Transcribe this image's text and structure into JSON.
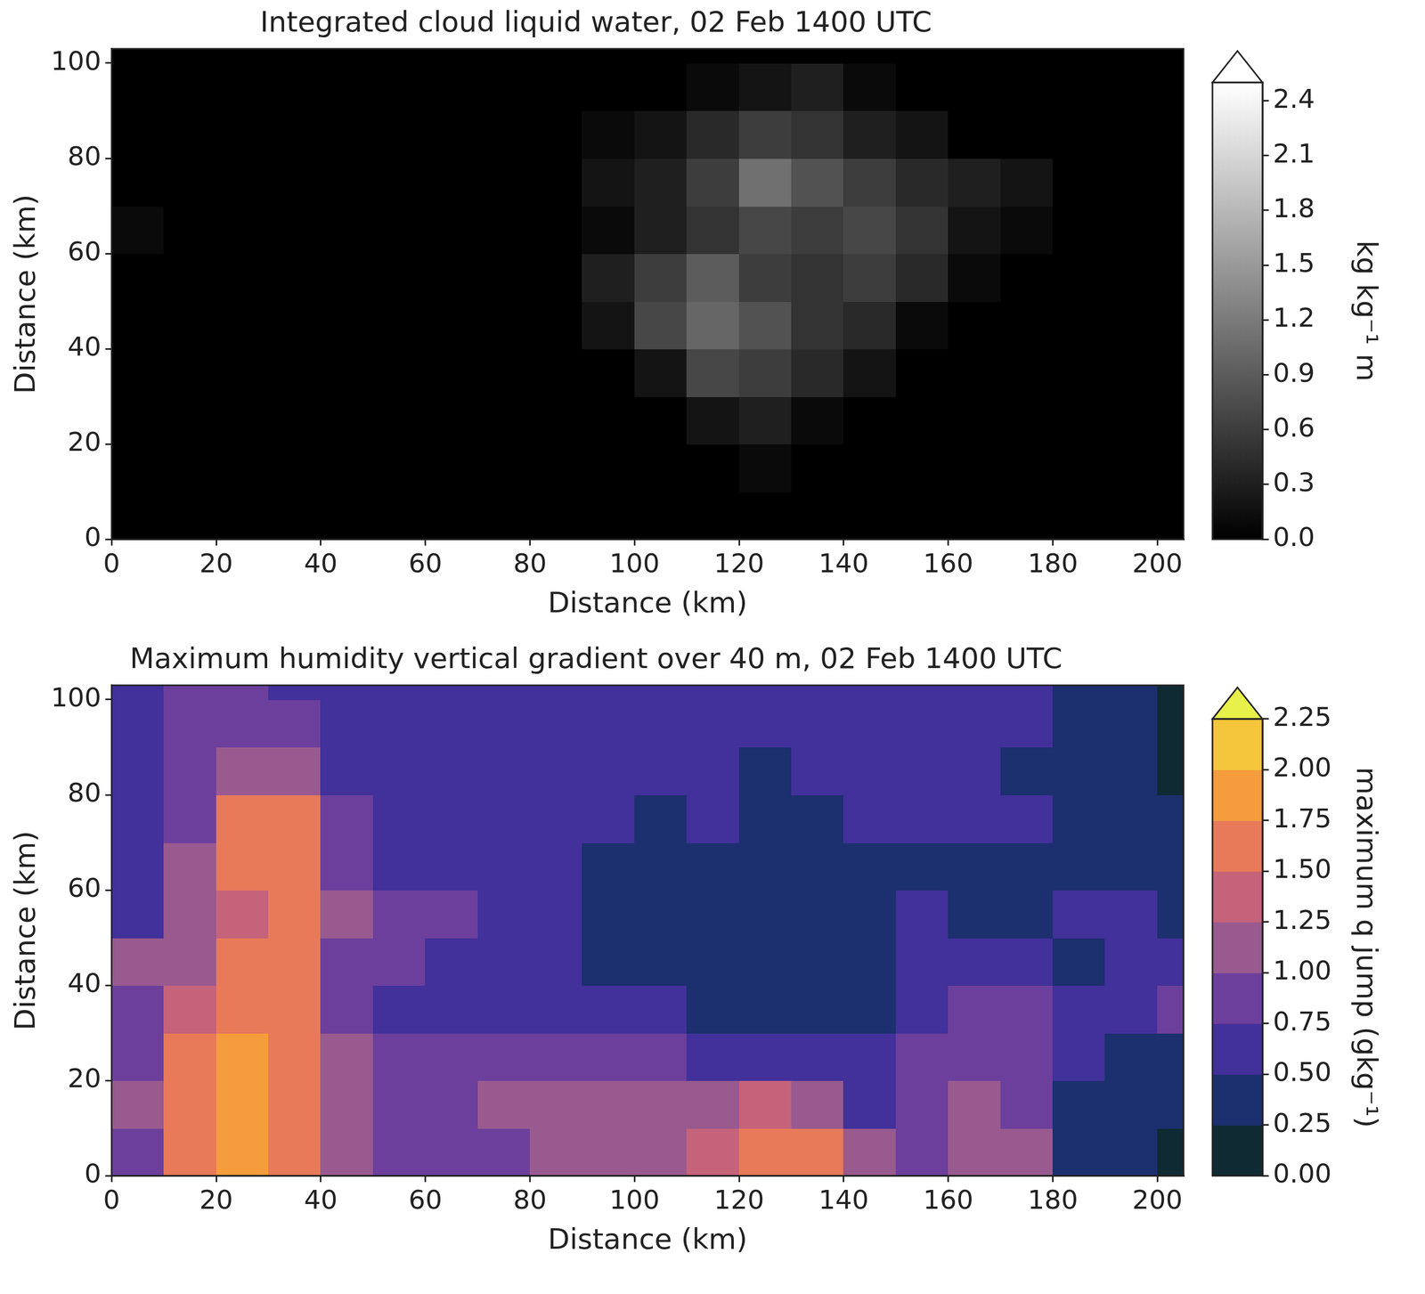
{
  "chart_data": [
    {
      "type": "heatmap",
      "title": "Integrated cloud liquid water, 02 Feb 1400 UTC",
      "x_label": "Distance (km)",
      "y_label": "Distance (km)",
      "xlim": [
        0,
        205
      ],
      "ylim": [
        0,
        103
      ],
      "xticks": [
        0,
        20,
        40,
        60,
        80,
        100,
        120,
        140,
        160,
        180,
        200
      ],
      "yticks": [
        0,
        20,
        40,
        60,
        80,
        100
      ],
      "x_edges": [
        0,
        10,
        20,
        30,
        40,
        50,
        60,
        70,
        80,
        90,
        100,
        110,
        120,
        130,
        140,
        150,
        160,
        170,
        180,
        190,
        200,
        205
      ],
      "y_edges": [
        0,
        10,
        20,
        30,
        40,
        50,
        60,
        70,
        80,
        90,
        100,
        103
      ],
      "cells": [
        [
          0,
          0,
          0,
          0,
          0,
          0,
          0,
          0,
          0,
          0,
          0,
          0,
          0,
          0,
          0,
          0,
          0,
          0,
          0,
          0,
          0
        ],
        [
          0,
          0,
          0,
          0,
          0,
          0,
          0,
          0,
          0,
          0,
          0,
          0,
          0.1,
          0,
          0,
          0,
          0,
          0,
          0,
          0,
          0
        ],
        [
          0,
          0,
          0,
          0,
          0,
          0,
          0,
          0,
          0,
          0,
          0,
          0.2,
          0.3,
          0.1,
          0,
          0,
          0,
          0,
          0,
          0,
          0
        ],
        [
          0,
          0,
          0,
          0,
          0,
          0,
          0,
          0,
          0,
          0,
          0.2,
          0.7,
          0.6,
          0.4,
          0.2,
          0,
          0,
          0,
          0,
          0,
          0
        ],
        [
          0,
          0,
          0,
          0,
          0,
          0,
          0,
          0,
          0,
          0.2,
          0.7,
          1.0,
          0.8,
          0.5,
          0.4,
          0.1,
          0,
          0,
          0,
          0,
          0
        ],
        [
          0,
          0,
          0,
          0,
          0,
          0,
          0,
          0,
          0,
          0.3,
          0.6,
          0.9,
          0.6,
          0.5,
          0.6,
          0.4,
          0.1,
          0,
          0,
          0,
          0
        ],
        [
          0.1,
          0,
          0,
          0,
          0,
          0,
          0,
          0,
          0,
          0.1,
          0.3,
          0.5,
          0.7,
          0.6,
          0.7,
          0.5,
          0.2,
          0.1,
          0,
          0,
          0
        ],
        [
          0,
          0,
          0,
          0,
          0,
          0,
          0,
          0,
          0,
          0.2,
          0.3,
          0.6,
          1.1,
          0.8,
          0.6,
          0.4,
          0.3,
          0.2,
          0,
          0,
          0
        ],
        [
          0,
          0,
          0,
          0,
          0,
          0,
          0,
          0,
          0,
          0.1,
          0.2,
          0.4,
          0.6,
          0.5,
          0.3,
          0.2,
          0,
          0,
          0,
          0,
          0
        ],
        [
          0,
          0,
          0,
          0,
          0,
          0,
          0,
          0,
          0,
          0,
          0,
          0.1,
          0.2,
          0.3,
          0.1,
          0,
          0,
          0,
          0,
          0,
          0
        ],
        [
          0,
          0,
          0,
          0,
          0,
          0,
          0,
          0,
          0,
          0,
          0,
          0,
          0,
          0,
          0,
          0,
          0,
          0,
          0,
          0,
          0
        ]
      ],
      "colorbar": {
        "label": "kg kg⁻¹ m",
        "range": [
          0,
          2.5
        ],
        "ticks": [
          {
            "value": 0,
            "label": "0.0"
          },
          0.3,
          0.6,
          0.9,
          1.2,
          1.5,
          1.8,
          2.1,
          2.4
        ],
        "colors": [
          "#000000",
          "#ffffff"
        ]
      }
    },
    {
      "type": "heatmap",
      "title": "Maximum humidity vertical gradient over 40 m, 02 Feb 1400 UTC",
      "x_label": "Distance (km)",
      "y_label": "Distance (km)",
      "xlim": [
        0,
        205
      ],
      "ylim": [
        0,
        103
      ],
      "xticks": [
        0,
        20,
        40,
        60,
        80,
        100,
        120,
        140,
        160,
        180,
        200
      ],
      "yticks": [
        0,
        20,
        40,
        60,
        80,
        100
      ],
      "x_edges": [
        0,
        10,
        20,
        30,
        40,
        50,
        60,
        70,
        80,
        90,
        100,
        110,
        120,
        130,
        140,
        150,
        160,
        170,
        180,
        190,
        200,
        205
      ],
      "y_edges": [
        0,
        10,
        20,
        30,
        40,
        50,
        60,
        70,
        80,
        90,
        100,
        103
      ],
      "cells": [
        [
          0.9,
          1.6,
          1.8,
          1.6,
          1.2,
          0.9,
          0.8,
          0.9,
          1.1,
          1.1,
          1.2,
          1.4,
          1.6,
          1.5,
          1.0,
          0.9,
          1.2,
          1.1,
          0.4,
          0.4,
          0.2
        ],
        [
          1.0,
          1.7,
          1.9,
          1.6,
          1.1,
          0.9,
          0.9,
          1.0,
          1.0,
          1.0,
          1.0,
          1.1,
          1.3,
          1.1,
          0.7,
          0.9,
          1.0,
          0.9,
          0.4,
          0.4,
          0.3
        ],
        [
          0.8,
          1.6,
          1.8,
          1.5,
          1.0,
          0.8,
          0.8,
          0.9,
          0.9,
          0.8,
          0.8,
          0.7,
          0.6,
          0.5,
          0.5,
          0.8,
          0.9,
          0.8,
          0.5,
          0.4,
          0.4
        ],
        [
          0.9,
          1.4,
          1.7,
          1.5,
          0.8,
          0.7,
          0.7,
          0.7,
          0.6,
          0.5,
          0.5,
          0.4,
          0.4,
          0.4,
          0.4,
          0.7,
          0.8,
          0.8,
          0.5,
          0.5,
          0.9
        ],
        [
          1.0,
          1.2,
          1.6,
          1.5,
          0.9,
          0.8,
          0.7,
          0.6,
          0.5,
          0.4,
          0.4,
          0.3,
          0.3,
          0.4,
          0.4,
          0.6,
          0.6,
          0.5,
          0.4,
          0.5,
          0.6
        ],
        [
          0.7,
          1.2,
          1.4,
          1.6,
          1.0,
          0.9,
          0.8,
          0.6,
          0.5,
          0.4,
          0.3,
          0.3,
          0.3,
          0.3,
          0.4,
          0.5,
          0.4,
          0.3,
          0.5,
          0.5,
          0.4
        ],
        [
          0.5,
          1.1,
          1.5,
          1.6,
          0.9,
          0.7,
          0.6,
          0.6,
          0.5,
          0.4,
          0.4,
          0.4,
          0.3,
          0.3,
          0.4,
          0.4,
          0.3,
          0.4,
          0.4,
          0.4,
          0.3
        ],
        [
          0.5,
          0.9,
          1.5,
          1.5,
          0.8,
          0.7,
          0.7,
          0.6,
          0.5,
          0.5,
          0.4,
          0.5,
          0.4,
          0.4,
          0.5,
          0.5,
          0.6,
          0.5,
          0.3,
          0.4,
          0.3
        ],
        [
          0.5,
          0.8,
          1.1,
          1.0,
          0.7,
          0.6,
          0.6,
          0.6,
          0.6,
          0.6,
          0.5,
          0.5,
          0.4,
          0.5,
          0.5,
          0.5,
          0.5,
          0.4,
          0.3,
          0.3,
          0.2
        ],
        [
          0.6,
          0.8,
          0.9,
          0.8,
          0.7,
          0.6,
          0.6,
          0.6,
          0.6,
          0.5,
          0.5,
          0.5,
          0.5,
          0.6,
          0.6,
          0.6,
          0.7,
          0.5,
          0.4,
          0.3,
          0.2
        ],
        [
          0.5,
          0.8,
          0.9,
          0.7,
          0.6,
          0.6,
          0.6,
          0.5,
          0.5,
          0.5,
          0.5,
          0.5,
          0.5,
          0.5,
          0.6,
          0.6,
          0.7,
          0.5,
          0.4,
          0.3,
          0.2
        ]
      ],
      "colorbar": {
        "label": "maximum q jump (gkg⁻¹)",
        "range": [
          0,
          2.25
        ],
        "ticks": [
          {
            "value": 0,
            "label": "0.00"
          },
          0.25,
          {
            "value": 0.5,
            "label": "0.50"
          },
          0.75,
          {
            "value": 1,
            "label": "1.00"
          },
          1.25,
          {
            "value": 1.5,
            "label": "1.50"
          },
          1.75,
          {
            "value": 2,
            "label": "2.00"
          },
          2.25
        ],
        "colors": [
          "#0f2a33",
          "#1c2f6e",
          "#42309b",
          "#6c3f9c",
          "#985a8f",
          "#c5637a",
          "#e87a5a",
          "#f59c3c",
          "#f5c53c",
          "#e8f04a"
        ]
      }
    }
  ]
}
